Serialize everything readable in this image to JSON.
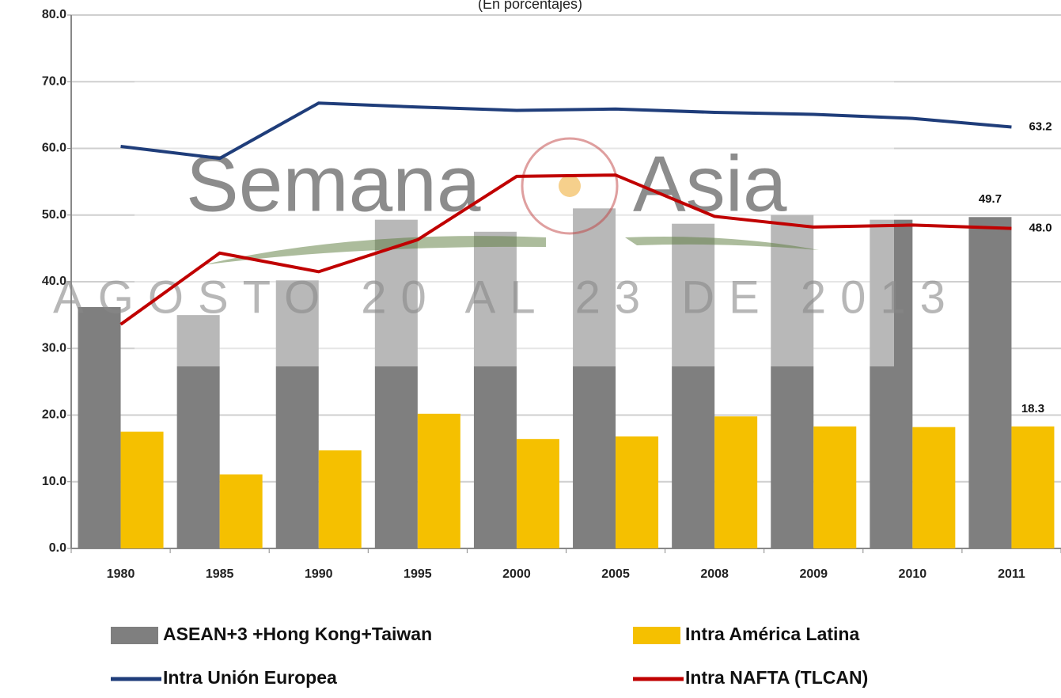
{
  "chart_data": {
    "type": "bar_line",
    "subtitle": "(En porcentajes)",
    "watermark": [
      "Semana",
      "Asia",
      "AGOSTO 20 AL 23 DE 2013"
    ],
    "categories": [
      "1980",
      "1985",
      "1990",
      "1995",
      "2000",
      "2005",
      "2008",
      "2009",
      "2010",
      "2011"
    ],
    "series": [
      {
        "name": "ASEAN+3 +Hong Kong+Taiwan",
        "kind": "bar",
        "color": "#7f7f7f",
        "values": [
          36.2,
          35.0,
          40.2,
          49.3,
          47.5,
          51.0,
          48.7,
          50.0,
          49.3,
          49.7
        ],
        "value_labels": [
          null,
          null,
          null,
          null,
          null,
          null,
          null,
          null,
          null,
          "49.7"
        ]
      },
      {
        "name": "Intra América Latina",
        "kind": "bar",
        "color": "#f5c000",
        "values": [
          17.5,
          11.1,
          14.7,
          20.2,
          16.4,
          16.8,
          19.8,
          18.3,
          18.2,
          18.3
        ],
        "value_labels": [
          null,
          null,
          null,
          null,
          null,
          null,
          null,
          null,
          null,
          "18.3"
        ]
      },
      {
        "name": "Intra Unión Europea",
        "kind": "line",
        "color": "#1f3d7a",
        "values": [
          60.3,
          58.5,
          66.8,
          66.2,
          65.7,
          65.9,
          65.4,
          65.1,
          64.5,
          63.2
        ],
        "value_labels": [
          null,
          null,
          null,
          null,
          null,
          null,
          null,
          null,
          null,
          "63.2"
        ]
      },
      {
        "name": "Intra NAFTA (TLCAN)",
        "kind": "line",
        "color": "#c00000",
        "values": [
          33.6,
          44.3,
          41.5,
          46.3,
          55.8,
          56.0,
          49.8,
          48.2,
          48.5,
          48.0
        ],
        "value_labels": [
          null,
          null,
          null,
          null,
          null,
          null,
          null,
          null,
          null,
          "48.0"
        ]
      }
    ],
    "ylim": [
      0,
      80
    ],
    "yticks": [
      {
        "value": 0,
        "label": "0.0"
      },
      {
        "value": 10,
        "label": "10.0"
      },
      {
        "value": 20,
        "label": "20.0"
      },
      {
        "value": 30,
        "label": "30.0"
      },
      {
        "value": 40,
        "label": "40.0"
      },
      {
        "value": 50,
        "label": "50.0"
      },
      {
        "value": 60,
        "label": "60.0"
      },
      {
        "value": 70,
        "label": "70.0"
      },
      {
        "value": 80,
        "label": "80.0"
      }
    ],
    "grid": true
  }
}
